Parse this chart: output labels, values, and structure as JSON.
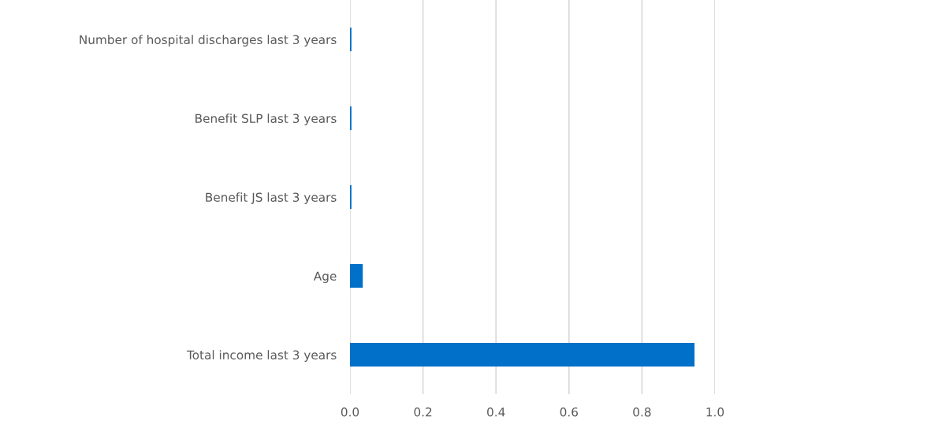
{
  "chart_data": {
    "type": "bar",
    "orientation": "horizontal",
    "categories": [
      "Number of hospital discharges last 3 years",
      "Benefit SLP last 3 years",
      "Benefit JS last 3 years",
      "Age",
      "Total income last 3 years"
    ],
    "values": [
      0.004,
      0.004,
      0.004,
      0.035,
      0.944
    ],
    "color": "#0070c8",
    "xlim": [
      0,
      1.0
    ],
    "xticks": [
      {
        "value": 0,
        "label": "0.0"
      },
      {
        "value": 0.2,
        "label": "0.2"
      },
      {
        "value": 0.4,
        "label": "0.4"
      },
      {
        "value": 0.6,
        "label": "0.6"
      },
      {
        "value": 0.8,
        "label": "0.8"
      },
      {
        "value": 1.0,
        "label": "1.0"
      }
    ],
    "grid": "x"
  }
}
